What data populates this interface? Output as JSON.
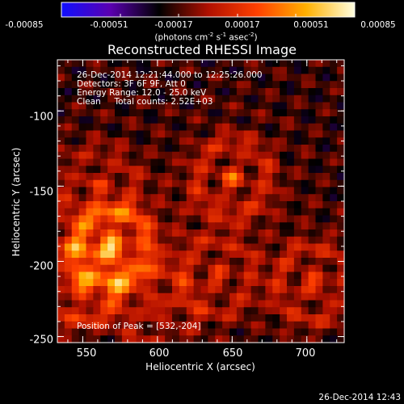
{
  "colorbar": {
    "ticks": [
      "-0.00085",
      "-0.00051",
      "-0.00017",
      "0.00017",
      "0.00051",
      "0.00085"
    ],
    "units_pre": "(photons cm",
    "units_exp1": "-2",
    "units_mid": " s",
    "units_exp2": "-1",
    "units_post": " asec",
    "units_exp3": "-2",
    "units_end": ")"
  },
  "chart_data": {
    "type": "heatmap",
    "title": "Reconstructed RHESSI Image",
    "xlabel": "Heliocentric X (arcsec)",
    "ylabel": "Heliocentric Y (arcsec)",
    "xlim": [
      533,
      725
    ],
    "ylim": [
      -254,
      -66
    ],
    "xticks": [
      "550",
      "600",
      "650",
      "700"
    ],
    "xtick_values": [
      550,
      600,
      650,
      700
    ],
    "yticks": [
      "-100",
      "-150",
      "-200",
      "-250"
    ],
    "ytick_values": [
      -100,
      -150,
      -200,
      -250
    ],
    "color_range": [
      -0.00085,
      0.00085
    ],
    "colormap": [
      "#1010ff",
      "#5a00b0",
      "#000000",
      "#b01000",
      "#ff4000",
      "#ffb000",
      "#ffffe0"
    ],
    "peak": {
      "x": 532,
      "y": -204
    },
    "sources": [
      {
        "x": 570,
        "y": -190,
        "amp": 0.00085
      },
      {
        "x": 548,
        "y": -215,
        "amp": 0.0006
      },
      {
        "x": 650,
        "y": -145,
        "amp": 0.00055
      },
      {
        "x": 705,
        "y": -215,
        "amp": 0.0005
      },
      {
        "x": 640,
        "y": -210,
        "amp": 0.0004
      },
      {
        "x": 560,
        "y": -150,
        "amp": 0.00035
      },
      {
        "x": 600,
        "y": -230,
        "amp": 0.0003
      }
    ],
    "annotations": [
      "26-Dec-2014 12:21:44.000 to 12:25:26.000",
      "Detectors: 3F 6F 9F, Att 0",
      "Energy Range: 12.0 - 25.0 keV",
      "Clean     Total counts: 2.52E+03"
    ],
    "peak_label": "Position of Peak = [532,-204]"
  },
  "footer": "26-Dec-2014 12:43"
}
